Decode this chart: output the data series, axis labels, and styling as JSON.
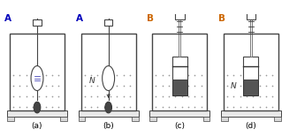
{
  "panels": [
    "(a)",
    "(b)",
    "(c)",
    "(d)"
  ],
  "labels_top": [
    "A",
    "A",
    "B",
    "B"
  ],
  "label_color_A": "#0000bb",
  "label_color_B": "#cc6600",
  "bg_color": "#ffffff",
  "dot_color": "#999999",
  "wall_color": "#444444",
  "weight_color": "#555555",
  "dark_rect_color": "#555555"
}
